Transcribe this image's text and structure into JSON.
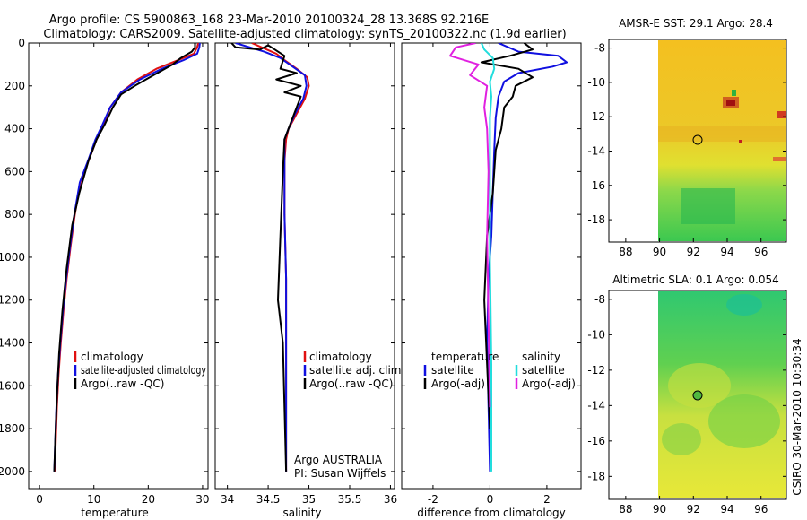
{
  "header": {
    "line1": "Argo profile: CS 5900863_168 23-Mar-2010 20100324_28 13.368S 92.216E",
    "line2": "Climatology: CARS2009. Satellite-adjusted climatology: synTS_20100322.nc (1.9d earlier)"
  },
  "footer": {
    "stamp": "CSIRO 30-Mar-2010 10:30:34",
    "argo_owner": "Argo AUSTRALIA",
    "pi": "PI: Susan Wijffels"
  },
  "colors": {
    "climatology": "#e01010",
    "satellite": "#1010e0",
    "argo": "#000000",
    "salinity_satellite": "#22dddd",
    "salinity_argo": "#e020e0"
  },
  "chart_data": [
    {
      "type": "line",
      "id": "temperature",
      "xlabel": "temperature",
      "ylabel": "",
      "xlim": [
        -2,
        31
      ],
      "ylim": [
        2080,
        0
      ],
      "xticks": [
        0,
        10,
        20,
        30
      ],
      "yticks": [
        0,
        200,
        400,
        600,
        800,
        1000,
        1200,
        1400,
        1600,
        1800,
        2000
      ],
      "legend": [
        "climatology",
        "satellite-adjusted climatology",
        "Argo(..raw -QC)"
      ],
      "series": [
        {
          "name": "climatology",
          "x": [
            29.2,
            29.0,
            28.4,
            25.5,
            21.5,
            18.0,
            15.0,
            13.0,
            11.8,
            10.5,
            9.0,
            7.5,
            6.5,
            5.7,
            5.0,
            4.4,
            3.9,
            3.5,
            3.2,
            3.0,
            2.8
          ],
          "y": [
            0,
            20,
            50,
            80,
            120,
            170,
            230,
            300,
            380,
            450,
            550,
            650,
            800,
            950,
            1100,
            1250,
            1400,
            1550,
            1700,
            1850,
            2000
          ]
        },
        {
          "name": "satellite",
          "x": [
            29.5,
            29.4,
            29.0,
            26.5,
            22.5,
            18.5,
            15.0,
            13.0,
            11.6,
            10.3,
            8.9,
            7.4,
            6.4,
            5.6,
            4.9,
            4.3,
            3.8,
            3.4,
            3.1,
            2.9,
            2.7
          ],
          "y": [
            0,
            20,
            50,
            80,
            120,
            170,
            230,
            300,
            380,
            450,
            550,
            650,
            800,
            950,
            1100,
            1250,
            1400,
            1550,
            1700,
            1850,
            2000
          ]
        },
        {
          "name": "argo",
          "x": [
            28.6,
            28.6,
            28.0,
            26.0,
            24.5,
            21.0,
            17.5,
            15.0,
            13.5,
            12.0,
            10.5,
            9.0,
            7.3,
            6.0,
            5.0,
            4.2,
            3.6,
            3.2,
            2.9,
            2.7
          ],
          "y": [
            0,
            20,
            40,
            70,
            100,
            150,
            200,
            240,
            300,
            380,
            450,
            550,
            700,
            850,
            1050,
            1250,
            1450,
            1650,
            1850,
            2000
          ]
        }
      ]
    },
    {
      "type": "line",
      "id": "salinity",
      "xlabel": "salinity",
      "ylabel": "",
      "xlim": [
        33.85,
        36.05
      ],
      "ylim": [
        2080,
        0
      ],
      "xticks": [
        34,
        34.5,
        35,
        35.5,
        36
      ],
      "legend": [
        "climatology",
        "satellite adj. clim.",
        "Argo(..raw -QC)"
      ],
      "series": [
        {
          "name": "climatology",
          "x": [
            34.3,
            34.6,
            34.7,
            34.85,
            34.98,
            35.0,
            34.95,
            34.85,
            34.75,
            34.72,
            34.7,
            34.7,
            34.72,
            34.72,
            34.72,
            34.72
          ],
          "y": [
            0,
            50,
            80,
            120,
            160,
            200,
            260,
            330,
            400,
            450,
            550,
            800,
            1100,
            1400,
            1700,
            2000
          ]
        },
        {
          "name": "satellite",
          "x": [
            34.1,
            34.45,
            34.65,
            34.8,
            34.95,
            34.97,
            34.93,
            34.83,
            34.75,
            34.7,
            34.7,
            34.7,
            34.72,
            34.72,
            34.72,
            34.72
          ],
          "y": [
            0,
            40,
            70,
            110,
            150,
            200,
            260,
            330,
            400,
            450,
            550,
            800,
            1100,
            1400,
            1700,
            2000
          ]
        },
        {
          "name": "argo",
          "x": [
            34.05,
            34.1,
            34.4,
            34.5,
            34.7,
            34.65,
            34.85,
            34.6,
            34.9,
            34.7,
            34.9,
            34.85,
            34.78,
            34.7,
            34.68,
            34.65,
            34.62,
            34.68,
            34.7,
            34.72
          ],
          "y": [
            0,
            20,
            30,
            10,
            60,
            120,
            140,
            170,
            200,
            230,
            250,
            300,
            370,
            450,
            600,
            900,
            1200,
            1400,
            1700,
            2000
          ]
        }
      ]
    },
    {
      "type": "line",
      "id": "difference",
      "xlabel": "difference from climatology",
      "ylabel": "",
      "xlim": [
        -3.1,
        3.2
      ],
      "ylim": [
        2080,
        0
      ],
      "xticks": [
        -2,
        0,
        2
      ],
      "legend_left_title": "temperature",
      "legend_left": [
        "satellite",
        "Argo(-adj)"
      ],
      "legend_right_title": "salinity",
      "legend_right": [
        "satellite",
        "Argo(-adj)"
      ],
      "series": [
        {
          "name": "temp-satellite",
          "x": [
            0.3,
            1.0,
            2.4,
            2.7,
            2.2,
            1.0,
            0.5,
            0.3,
            0.2,
            0.15,
            0.1,
            0.05,
            -0.05,
            -0.1,
            -0.05,
            0.0
          ],
          "y": [
            0,
            40,
            60,
            90,
            110,
            140,
            180,
            250,
            350,
            500,
            700,
            900,
            1100,
            1400,
            1700,
            2000
          ]
        },
        {
          "name": "temp-argo",
          "x": [
            1.2,
            1.5,
            0.7,
            -0.3,
            1.0,
            1.5,
            0.9,
            0.8,
            0.5,
            0.4,
            0.2,
            0.1,
            -0.1,
            -0.2,
            -0.1,
            0.0
          ],
          "y": [
            0,
            30,
            60,
            90,
            120,
            160,
            200,
            250,
            300,
            400,
            500,
            700,
            900,
            1200,
            1500,
            1800
          ]
        },
        {
          "name": "sal-satellite",
          "x": [
            -0.3,
            -0.2,
            0.1,
            0.15,
            0.0,
            0.05,
            0.0,
            0.0,
            0.0,
            0.05,
            0.05
          ],
          "y": [
            0,
            30,
            70,
            120,
            180,
            250,
            350,
            500,
            1000,
            1500,
            2000
          ]
        },
        {
          "name": "sal-argo",
          "x": [
            -0.5,
            -1.2,
            -1.4,
            -0.4,
            -0.7,
            -0.1,
            -0.2,
            -0.1,
            -0.05,
            -0.1,
            -0.05,
            0.0
          ],
          "y": [
            0,
            20,
            60,
            100,
            150,
            200,
            300,
            400,
            600,
            900,
            1300,
            1700
          ]
        }
      ]
    },
    {
      "type": "heatmap",
      "id": "sst-map",
      "title": "AMSR-E SST: 29.1 Argo: 28.4",
      "xlim": [
        87,
        97.5
      ],
      "ylim": [
        -19.3,
        -7.5
      ],
      "xticks": [
        88,
        90,
        92,
        94,
        96
      ],
      "yticks": [
        -8,
        -10,
        -12,
        -14,
        -16,
        -18
      ],
      "marker": {
        "lon": 92.2,
        "lat": -13.4
      }
    },
    {
      "type": "heatmap",
      "id": "sla-map",
      "title": "Altimetric SLA: 0.1 Argo: 0.054",
      "xlim": [
        87,
        97.5
      ],
      "ylim": [
        -19.3,
        -7.5
      ],
      "xticks": [
        88,
        90,
        92,
        94,
        96
      ],
      "yticks": [
        -8,
        -10,
        -12,
        -14,
        -16,
        -18
      ],
      "marker": {
        "lon": 92.2,
        "lat": -13.4
      }
    }
  ]
}
